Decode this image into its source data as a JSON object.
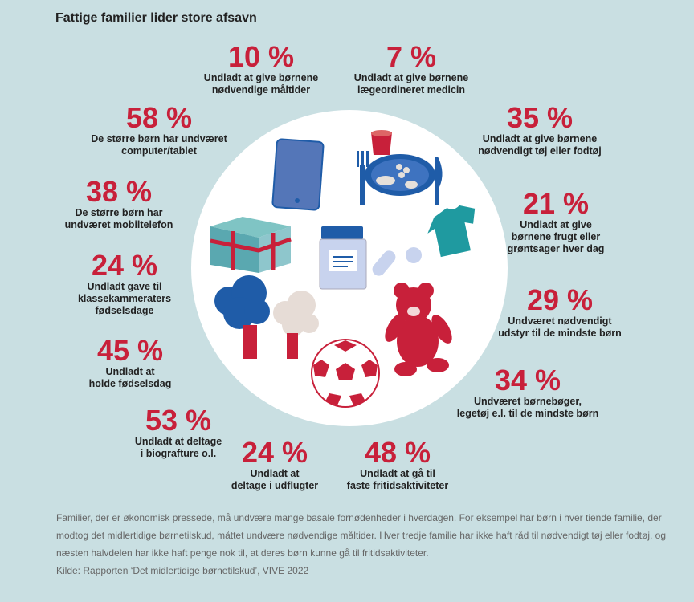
{
  "title": "Fattige familier lider store afsavn",
  "stats": [
    {
      "pct": "10 %",
      "label": "Undladt at give børnene\nnødvendige måltider"
    },
    {
      "pct": "7 %",
      "label": "Undladt at give børnene\nlægeordineret medicin"
    },
    {
      "pct": "58 %",
      "label": "De større børn har undværet\ncomputer/tablet"
    },
    {
      "pct": "35 %",
      "label": "Undladt at give børnene\nnødvendigt tøj eller fodtøj"
    },
    {
      "pct": "38 %",
      "label": "De større børn har\nundværet mobiltelefon"
    },
    {
      "pct": "21 %",
      "label": "Undladt at give\nbørnene frugt eller\ngrøntsager hver dag"
    },
    {
      "pct": "24 %",
      "label": "Undladt gave til\nklassekammeraters\nfødselsdage"
    },
    {
      "pct": "29 %",
      "label": "Undværet nødvendigt\nudstyr til de mindste børn"
    },
    {
      "pct": "45 %",
      "label": "Undladt at\nholde fødselsdag"
    },
    {
      "pct": "34 %",
      "label": "Undværet børnebøger,\nlegetøj e.l. til de mindste børn"
    },
    {
      "pct": "53 %",
      "label": "Undladt at deltage\ni biografture o.l."
    },
    {
      "pct": "24 %",
      "label": "Undladt at\ndeltage i udflugter"
    },
    {
      "pct": "48 %",
      "label": "Undladt at gå til\nfaste fritidsaktiviteter"
    }
  ],
  "footer": {
    "text": "Familier, der er økonomisk pressede, må undvære mange basale fornødenheder i hverdagen. For eksempel har børn i hver tiende familie, der modtog det midlertidige børnetilskud, måttet undvære nødvendige måltider. Hver tredje familie har ikke haft råd til nødvendigt tøj eller fodtøj, og næsten halvdelen har ikke haft penge nok til, at deres børn kunne gå til fritidsaktiviteter.",
    "source": "Kilde: Rapporten ‘Det midlertidige børnetilskud’, VIVE 2022"
  },
  "colors": {
    "accent": "#c8203a",
    "blue": "#1f5ca8",
    "teal": "#2a9a9a",
    "background": "#c9dfe2"
  },
  "icons": [
    "tablet-icon",
    "cup-icon",
    "plate-icon",
    "fork-icon",
    "knife-icon",
    "gift-icon",
    "medicine-jar-icon",
    "pills-icon",
    "tshirt-icon",
    "trees-icon",
    "teddy-bear-icon",
    "football-icon"
  ]
}
